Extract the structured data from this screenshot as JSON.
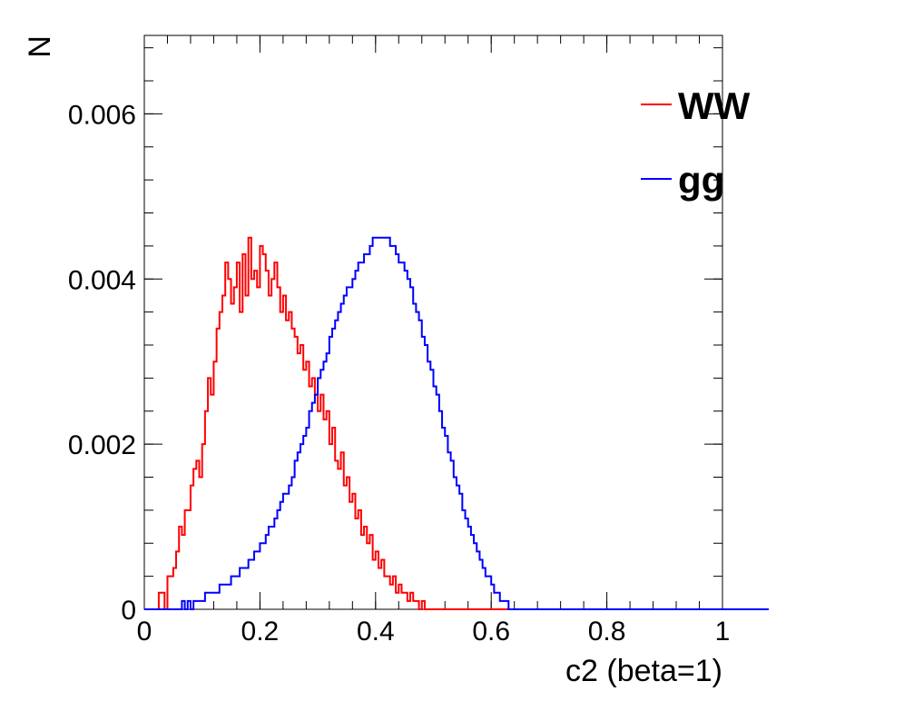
{
  "chart_data": {
    "type": "line",
    "style": "step-histogram",
    "xlabel": "c2 (beta=1)",
    "ylabel": "N",
    "xlim": [
      0,
      1
    ],
    "ylim": [
      0,
      0.00695
    ],
    "x_tick_labels": [
      "0",
      "0.2",
      "0.4",
      "0.6",
      "0.8",
      "1"
    ],
    "y_tick_labels": [
      "0",
      "0.002",
      "0.004",
      "0.006"
    ],
    "grid": false,
    "legend_position": "top-right",
    "bin_width": 0.005,
    "x_start": 0.0,
    "series": [
      {
        "name": "WW",
        "color": "#ff0000",
        "values": [
          0,
          0,
          0,
          0,
          0,
          0.0002,
          0.0002,
          0,
          0.0004,
          0.0004,
          0.0005,
          0.0007,
          0.001,
          0.0009,
          0.0012,
          0.0012,
          0.0015,
          0.0017,
          0.0018,
          0.0016,
          0.002,
          0.0024,
          0.0028,
          0.0026,
          0.003,
          0.0034,
          0.0036,
          0.0038,
          0.0042,
          0.004,
          0.0037,
          0.0039,
          0.0042,
          0.0036,
          0.0043,
          0.0038,
          0.0045,
          0.004,
          0.0041,
          0.0039,
          0.0044,
          0.0043,
          0.0041,
          0.0038,
          0.004,
          0.0042,
          0.0039,
          0.0036,
          0.0038,
          0.0035,
          0.0036,
          0.0034,
          0.0033,
          0.0031,
          0.0032,
          0.0029,
          0.003,
          0.0027,
          0.0028,
          0.0026,
          0.0024,
          0.0026,
          0.0023,
          0.0024,
          0.002,
          0.0022,
          0.0018,
          0.0017,
          0.0019,
          0.0015,
          0.0016,
          0.0013,
          0.0014,
          0.0011,
          0.0012,
          0.0009,
          0.001,
          0.0008,
          0.0009,
          0.0006,
          0.0007,
          0.0005,
          0.0006,
          0.0004,
          0.0004,
          0.0003,
          0.0004,
          0.0002,
          0.0003,
          0.0002,
          0.0002,
          0.0001,
          0.0002,
          0.0001,
          0.0001,
          0,
          0.0001,
          0,
          0,
          0,
          0,
          0,
          0,
          0,
          0,
          0,
          0,
          0,
          0,
          0,
          0,
          0,
          0,
          0,
          0,
          0,
          0,
          0,
          0,
          0,
          0,
          0,
          0,
          0,
          0,
          0,
          0,
          0,
          0,
          0,
          0,
          0,
          0,
          0,
          0,
          0,
          0,
          0,
          0,
          0,
          0,
          0,
          0,
          0,
          0,
          0,
          0,
          0,
          0,
          0,
          0,
          0,
          0,
          0,
          0,
          0,
          0,
          0,
          0,
          0,
          0,
          0,
          0,
          0,
          0,
          0,
          0,
          0,
          0,
          0,
          0,
          0,
          0,
          0,
          0,
          0,
          0,
          0,
          0,
          0,
          0,
          0,
          0,
          0,
          0,
          0,
          0,
          0,
          0,
          0,
          0,
          0,
          0,
          0,
          0,
          0,
          0,
          0,
          0,
          0,
          0,
          0,
          0,
          0,
          0,
          0,
          0
        ]
      },
      {
        "name": "gg",
        "color": "#0000ff",
        "values": [
          0,
          0,
          0,
          0,
          0,
          0,
          0,
          0,
          0,
          0,
          0,
          0,
          0,
          0.0001,
          0,
          0.0001,
          0,
          0.0001,
          0.0001,
          0.0001,
          0.0001,
          0.0002,
          0.0002,
          0.0002,
          0.0002,
          0.0002,
          0.0003,
          0.0003,
          0.0003,
          0.0003,
          0.0004,
          0.0004,
          0.0004,
          0.0005,
          0.0005,
          0.0005,
          0.0006,
          0.0006,
          0.0007,
          0.0007,
          0.0008,
          0.0008,
          0.0009,
          0.001,
          0.001,
          0.0011,
          0.0012,
          0.0013,
          0.0014,
          0.0014,
          0.0015,
          0.0016,
          0.0018,
          0.0019,
          0.002,
          0.0021,
          0.0022,
          0.0024,
          0.0025,
          0.0026,
          0.0028,
          0.0029,
          0.003,
          0.0031,
          0.0033,
          0.0034,
          0.0035,
          0.0036,
          0.0037,
          0.0038,
          0.0039,
          0.0039,
          0.004,
          0.0041,
          0.0042,
          0.0042,
          0.0043,
          0.0043,
          0.0044,
          0.0045,
          0.0045,
          0.0045,
          0.0045,
          0.0045,
          0.0045,
          0.0044,
          0.0044,
          0.0043,
          0.0042,
          0.0042,
          0.0041,
          0.004,
          0.0039,
          0.0037,
          0.0036,
          0.0035,
          0.0033,
          0.0032,
          0.003,
          0.0029,
          0.0027,
          0.0026,
          0.0024,
          0.0022,
          0.0021,
          0.0019,
          0.0018,
          0.0016,
          0.0015,
          0.0014,
          0.0012,
          0.0011,
          0.001,
          0.0009,
          0.0008,
          0.0007,
          0.0006,
          0.0005,
          0.0004,
          0.0004,
          0.0003,
          0.0002,
          0.0002,
          0.0001,
          0.0001,
          0.0001,
          0,
          0,
          0,
          0,
          0,
          0,
          0,
          0,
          0,
          0,
          0,
          0,
          0,
          0,
          0,
          0,
          0,
          0,
          0,
          0,
          0,
          0,
          0,
          0,
          0,
          0,
          0,
          0,
          0,
          0,
          0,
          0,
          0,
          0,
          0,
          0,
          0,
          0,
          0,
          0,
          0,
          0,
          0,
          0,
          0,
          0,
          0,
          0,
          0,
          0,
          0,
          0,
          0,
          0,
          0,
          0,
          0,
          0,
          0,
          0,
          0,
          0,
          0,
          0,
          0,
          0,
          0,
          0,
          0,
          0,
          0,
          0,
          0,
          0,
          0,
          0,
          0,
          0,
          0,
          0,
          0,
          0,
          0,
          0,
          0,
          0,
          0,
          0,
          0,
          0
        ]
      }
    ]
  }
}
